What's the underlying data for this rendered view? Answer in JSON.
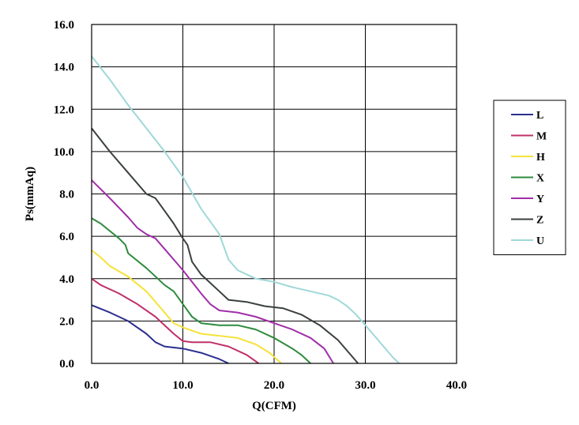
{
  "chart_data": {
    "type": "line",
    "title": "",
    "xlabel": "Q(CFM)",
    "ylabel": "Ps(mmAq)",
    "xlim": [
      0,
      40
    ],
    "ylim": [
      0,
      16
    ],
    "x_ticks": [
      "0.0",
      "10.0",
      "20.0",
      "30.0",
      "40.0"
    ],
    "y_ticks": [
      "0.0",
      "2.0",
      "4.0",
      "6.0",
      "8.0",
      "10.0",
      "12.0",
      "14.0",
      "16.0"
    ],
    "grid": true,
    "legend_position": "right",
    "series": [
      {
        "name": "L",
        "color": "#2b2f8f",
        "points": [
          [
            0,
            2.75
          ],
          [
            2,
            2.4
          ],
          [
            4,
            2.0
          ],
          [
            6,
            1.4
          ],
          [
            7,
            1.0
          ],
          [
            8,
            0.8
          ],
          [
            10,
            0.7
          ],
          [
            12,
            0.5
          ],
          [
            14,
            0.2
          ],
          [
            15,
            0.0
          ]
        ]
      },
      {
        "name": "M",
        "color": "#c0306a",
        "points": [
          [
            0,
            4.0
          ],
          [
            1,
            3.7
          ],
          [
            3,
            3.3
          ],
          [
            5,
            2.8
          ],
          [
            7,
            2.2
          ],
          [
            9,
            1.4
          ],
          [
            10,
            1.05
          ],
          [
            11,
            1.0
          ],
          [
            13,
            1.0
          ],
          [
            15,
            0.8
          ],
          [
            17,
            0.4
          ],
          [
            18.3,
            0.0
          ]
        ]
      },
      {
        "name": "H",
        "color": "#f5e23a",
        "points": [
          [
            0,
            5.35
          ],
          [
            1,
            5.0
          ],
          [
            2,
            4.6
          ],
          [
            4,
            4.1
          ],
          [
            6,
            3.4
          ],
          [
            8,
            2.4
          ],
          [
            9,
            1.9
          ],
          [
            10,
            1.7
          ],
          [
            12,
            1.4
          ],
          [
            14,
            1.3
          ],
          [
            16,
            1.2
          ],
          [
            18,
            0.9
          ],
          [
            19.5,
            0.5
          ],
          [
            20.8,
            0.0
          ]
        ]
      },
      {
        "name": "X",
        "color": "#2e8b3e",
        "points": [
          [
            0,
            6.85
          ],
          [
            1,
            6.6
          ],
          [
            3,
            5.9
          ],
          [
            3.7,
            5.6
          ],
          [
            4,
            5.2
          ],
          [
            6,
            4.5
          ],
          [
            8,
            3.7
          ],
          [
            9,
            3.4
          ],
          [
            10,
            2.8
          ],
          [
            11,
            2.2
          ],
          [
            12,
            1.9
          ],
          [
            14,
            1.8
          ],
          [
            16,
            1.8
          ],
          [
            18,
            1.6
          ],
          [
            20,
            1.2
          ],
          [
            22,
            0.7
          ],
          [
            23,
            0.4
          ],
          [
            24,
            0.0
          ]
        ]
      },
      {
        "name": "Y",
        "color": "#a02fa8",
        "points": [
          [
            0,
            8.65
          ],
          [
            2,
            7.8
          ],
          [
            4,
            6.9
          ],
          [
            5,
            6.4
          ],
          [
            6,
            6.1
          ],
          [
            7,
            5.9
          ],
          [
            8,
            5.4
          ],
          [
            10,
            4.4
          ],
          [
            12,
            3.3
          ],
          [
            13,
            2.8
          ],
          [
            14,
            2.5
          ],
          [
            16,
            2.4
          ],
          [
            18,
            2.2
          ],
          [
            20,
            1.9
          ],
          [
            22,
            1.6
          ],
          [
            24,
            1.2
          ],
          [
            25.5,
            0.7
          ],
          [
            26.5,
            0.0
          ]
        ]
      },
      {
        "name": "Z",
        "color": "#3a3f3f",
        "points": [
          [
            0,
            11.1
          ],
          [
            2,
            10.0
          ],
          [
            4,
            9.0
          ],
          [
            6,
            8.0
          ],
          [
            7,
            7.8
          ],
          [
            8,
            7.2
          ],
          [
            9,
            6.6
          ],
          [
            10,
            5.9
          ],
          [
            10.5,
            5.6
          ],
          [
            11,
            4.8
          ],
          [
            12,
            4.2
          ],
          [
            14,
            3.4
          ],
          [
            15,
            3.0
          ],
          [
            17,
            2.9
          ],
          [
            19,
            2.7
          ],
          [
            21,
            2.6
          ],
          [
            23,
            2.3
          ],
          [
            25,
            1.8
          ],
          [
            27,
            1.1
          ],
          [
            28,
            0.6
          ],
          [
            29.2,
            0.0
          ]
        ]
      },
      {
        "name": "U",
        "color": "#9fd8d8",
        "points": [
          [
            0,
            14.5
          ],
          [
            2,
            13.4
          ],
          [
            4,
            12.2
          ],
          [
            6,
            11.1
          ],
          [
            8,
            10.0
          ],
          [
            10,
            8.8
          ],
          [
            12,
            7.3
          ],
          [
            14,
            6.1
          ],
          [
            15,
            4.9
          ],
          [
            16,
            4.4
          ],
          [
            18,
            4.0
          ],
          [
            20,
            3.85
          ],
          [
            22,
            3.6
          ],
          [
            24,
            3.4
          ],
          [
            26,
            3.2
          ],
          [
            27,
            3.0
          ],
          [
            28,
            2.7
          ],
          [
            29,
            2.3
          ],
          [
            30,
            1.8
          ],
          [
            31,
            1.3
          ],
          [
            32,
            0.8
          ],
          [
            33,
            0.3
          ],
          [
            33.7,
            0.0
          ]
        ]
      }
    ]
  }
}
